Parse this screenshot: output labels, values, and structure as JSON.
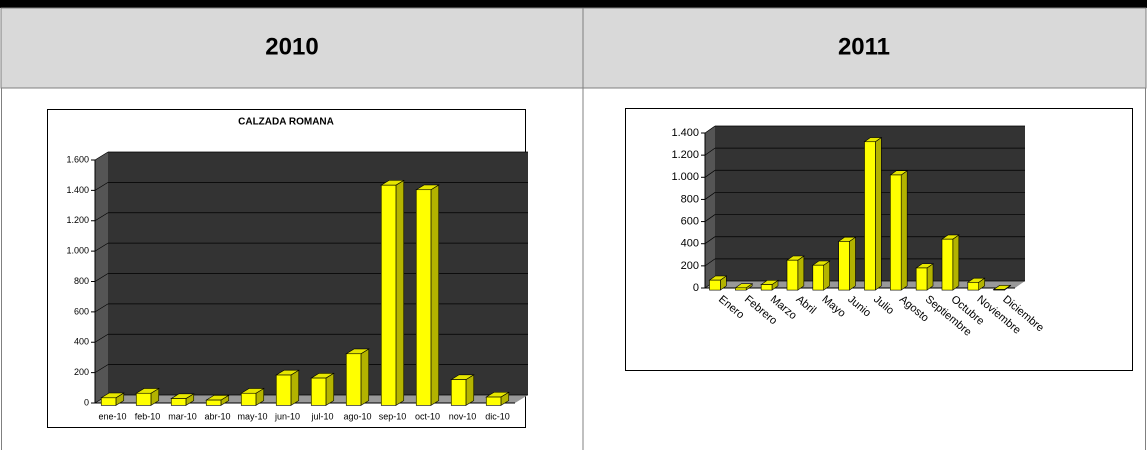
{
  "table": {
    "headers": [
      "2010",
      "2011"
    ]
  },
  "chart_data": [
    {
      "type": "bar",
      "title": "CALZADA ROMANA",
      "color": "#ffff00",
      "categories": [
        "ene-10",
        "feb-10",
        "mar-10",
        "abr-10",
        "may-10",
        "jun-10",
        "jul-10",
        "ago-10",
        "sep-10",
        "oct-10",
        "nov-10",
        "dic-10"
      ],
      "values": [
        50,
        80,
        45,
        35,
        80,
        200,
        180,
        340,
        1450,
        1420,
        170,
        55
      ],
      "ylim": [
        0,
        1600
      ],
      "yticks": [
        0,
        200,
        400,
        600,
        800,
        {
          "value": 1000,
          "label": "1.000"
        },
        {
          "value": 1200,
          "label": "1.200"
        },
        {
          "value": 1400,
          "label": "1.400"
        },
        {
          "value": 1600,
          "label": "1.600"
        }
      ],
      "grid": true
    },
    {
      "type": "bar",
      "color": "#ffff00",
      "categories": [
        "Enero",
        "Febrero",
        "Marzo",
        "Abril",
        "Mayo",
        "Junio",
        "Julio",
        "Agosto",
        "Septiembre",
        "Octubre",
        "Noviembre",
        "Diciembre"
      ],
      "values": [
        90,
        20,
        50,
        270,
        225,
        440,
        1340,
        1040,
        200,
        460,
        70,
        5
      ],
      "ylim": [
        0,
        1400
      ],
      "yticks": [
        0,
        200,
        400,
        600,
        800,
        {
          "value": 1000,
          "label": "1.000"
        },
        {
          "value": 1200,
          "label": "1.200"
        },
        {
          "value": 1400,
          "label": "1.400"
        }
      ],
      "grid": true
    }
  ]
}
